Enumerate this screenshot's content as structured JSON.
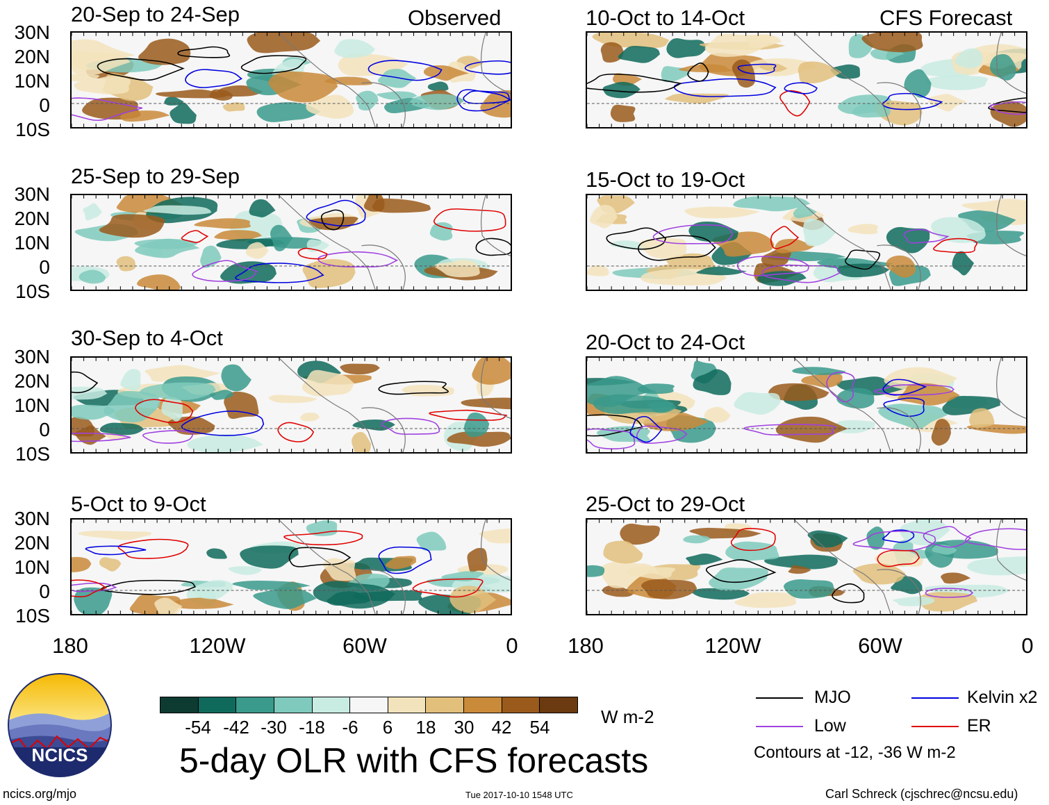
{
  "left_header": "Observed",
  "right_header": "CFS Forecast",
  "panels": {
    "left": [
      {
        "title": "20-Sep to 24-Sep"
      },
      {
        "title": "25-Sep to 29-Sep"
      },
      {
        "title": "30-Sep to 4-Oct"
      },
      {
        "title": "5-Oct to 9-Oct"
      }
    ],
    "right": [
      {
        "title": "10-Oct to 14-Oct"
      },
      {
        "title": "15-Oct to 19-Oct"
      },
      {
        "title": "20-Oct to 24-Oct"
      },
      {
        "title": "25-Oct to 29-Oct"
      }
    ]
  },
  "lat_labels": [
    "30N",
    "20N",
    "10N",
    "0",
    "10S"
  ],
  "lon_labels": [
    "180",
    "120W",
    "60W",
    "0"
  ],
  "colorbar": {
    "labels": [
      "-54",
      "-42",
      "-30",
      "-18",
      "-6",
      "6",
      "18",
      "30",
      "42",
      "54"
    ],
    "colors": [
      "#0d3b32",
      "#0f6a5c",
      "#3a9a8c",
      "#7fcabc",
      "#c8ebe2",
      "#f6f6f6",
      "#f3e3bc",
      "#e2c07c",
      "#c98a3a",
      "#9a5a1c",
      "#6b3a10"
    ],
    "units": "W m-2"
  },
  "legend": {
    "mjo": {
      "label": "MJO",
      "color": "#000000"
    },
    "kelvin": {
      "label": "Kelvin x2",
      "color": "#0000e0"
    },
    "low": {
      "label": "Low",
      "color": "#a040e0"
    },
    "er": {
      "label": "ER",
      "color": "#e00000"
    },
    "note": "Contours at -12, -36 W m-2"
  },
  "title": "5-day OLR with CFS forecasts",
  "logo_text": "NCICS",
  "footer": {
    "url": "ncics.org/mjo",
    "timestamp": "Tue 2017-10-10 1548 UTC",
    "author": "Carl Schreck (cjschrec@ncsu.edu)"
  }
}
